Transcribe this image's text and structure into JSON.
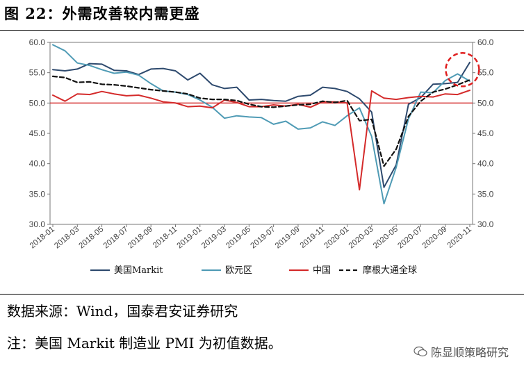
{
  "figure_title": "图 22：外需改善较内需更盛",
  "source_text": "数据来源：Wind，国泰君安证券研究",
  "note_text": "注：美国 Markit 制造业 PMI 为初值数据。",
  "watermark_text": "陈显顺策略研究",
  "chart_data": {
    "type": "line",
    "x": [
      "2018-01",
      "2018-02",
      "2018-03",
      "2018-04",
      "2018-05",
      "2018-06",
      "2018-07",
      "2018-08",
      "2018-09",
      "2018-10",
      "2018-11",
      "2018-12",
      "2019-01",
      "2019-02",
      "2019-03",
      "2019-04",
      "2019-05",
      "2019-06",
      "2019-07",
      "2019-08",
      "2019-09",
      "2019-10",
      "2019-11",
      "2019-12",
      "2020-01",
      "2020-02",
      "2020-03",
      "2020-04",
      "2020-05",
      "2020-06",
      "2020-07",
      "2020-08",
      "2020-09",
      "2020-10",
      "2020-11"
    ],
    "x_tick_labels": [
      "2018-01",
      "2018-03",
      "2018-05",
      "2018-07",
      "2018-09",
      "2018-11",
      "2019-01",
      "2019-03",
      "2019-05",
      "2019-07",
      "2019-09",
      "2019-11",
      "2020-01",
      "2020-03",
      "2020-05",
      "2020-07",
      "2020-09",
      "2020-11"
    ],
    "ylim": [
      30,
      60
    ],
    "y_ticks": [
      "30.0",
      "35.0",
      "40.0",
      "45.0",
      "50.0",
      "55.0",
      "60.0"
    ],
    "reference_line": 50,
    "series": [
      {
        "name": "美国Markit",
        "color": "#2e4a6e",
        "dash": "none",
        "values": [
          55.5,
          55.3,
          55.6,
          56.5,
          56.4,
          55.4,
          55.3,
          54.7,
          55.6,
          55.7,
          55.3,
          53.8,
          54.9,
          53.0,
          52.4,
          52.6,
          50.5,
          50.6,
          50.4,
          50.3,
          51.1,
          51.3,
          52.6,
          52.4,
          51.9,
          50.7,
          48.5,
          36.1,
          39.8,
          49.8,
          50.9,
          53.1,
          53.2,
          53.4,
          56.7
        ]
      },
      {
        "name": "欧元区",
        "color": "#4f9bb5",
        "dash": "none",
        "values": [
          59.6,
          58.6,
          56.6,
          56.2,
          55.5,
          54.9,
          55.1,
          54.6,
          53.2,
          52.0,
          51.8,
          51.4,
          50.5,
          49.3,
          47.5,
          47.9,
          47.7,
          47.6,
          46.5,
          47.0,
          45.7,
          45.9,
          46.9,
          46.3,
          47.9,
          49.2,
          44.5,
          33.4,
          39.4,
          47.4,
          51.8,
          51.7,
          53.7,
          54.8,
          53.6
        ]
      },
      {
        "name": "中国",
        "color": "#d42a2a",
        "dash": "none",
        "values": [
          51.3,
          50.3,
          51.5,
          51.4,
          51.9,
          51.5,
          51.2,
          51.3,
          50.8,
          50.2,
          50.0,
          49.4,
          49.5,
          49.2,
          50.5,
          50.1,
          49.4,
          49.4,
          49.7,
          49.5,
          49.8,
          49.3,
          50.2,
          50.2,
          50.0,
          35.7,
          52.0,
          50.8,
          50.6,
          50.9,
          51.1,
          51.0,
          51.5,
          51.4,
          52.1
        ]
      },
      {
        "name": "摩根大通全球",
        "color": "#111111",
        "dash": "6,4",
        "values": [
          54.4,
          54.2,
          53.4,
          53.5,
          53.1,
          53.0,
          52.8,
          52.5,
          52.2,
          52.0,
          51.8,
          51.5,
          50.8,
          50.6,
          50.6,
          50.4,
          49.8,
          49.4,
          49.3,
          49.5,
          49.7,
          49.8,
          50.3,
          50.1,
          50.4,
          47.1,
          47.3,
          39.6,
          42.4,
          47.8,
          50.3,
          51.8,
          52.3,
          53.0,
          53.8
        ]
      }
    ],
    "legend_position": "bottom",
    "annotation": "red dashed circle highlighting latest values (2020-10 to 2020-11)"
  }
}
